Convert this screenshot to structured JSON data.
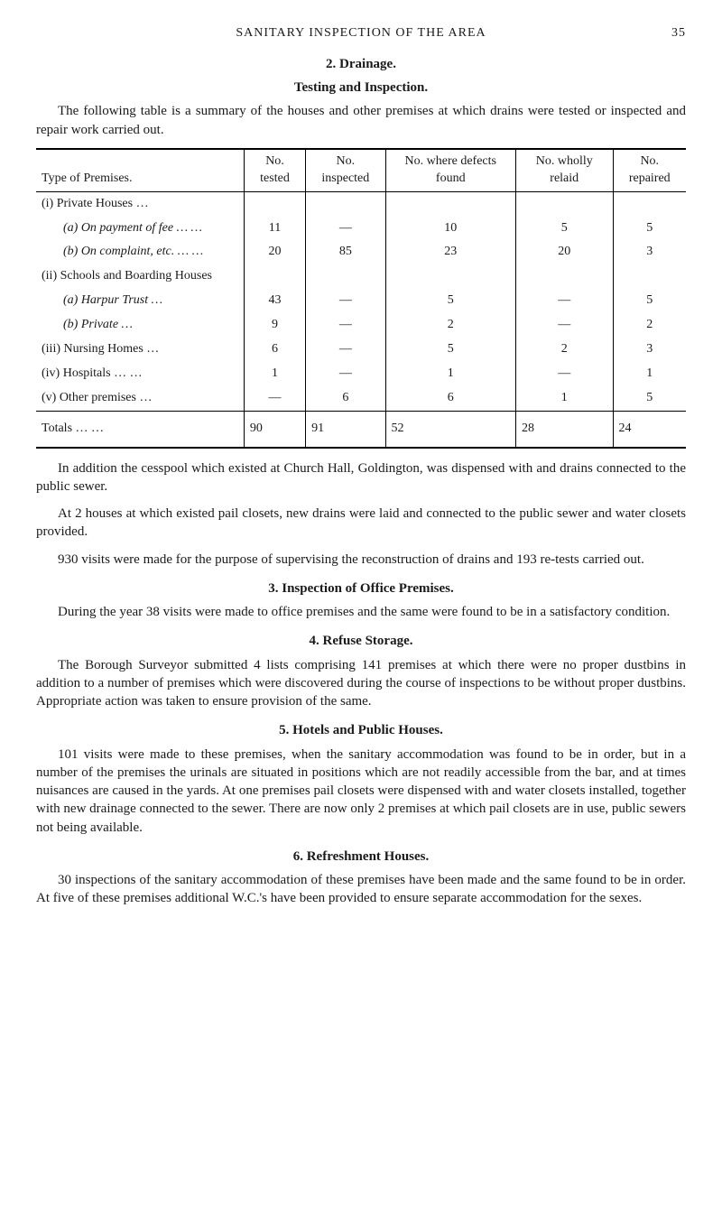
{
  "page": {
    "running_head": "SANITARY INSPECTION OF THE AREA",
    "number": "35"
  },
  "sec2": {
    "title_num": "2.  Drainage.",
    "subtitle": "Testing and Inspection.",
    "intro": "The following table is a summary of the houses and other premises at which drains were tested or inspected and repair work carried out."
  },
  "table": {
    "columns": [
      "Type of Premises.",
      "No. tested",
      "No. inspected",
      "No. where defects found",
      "No. wholly relaid",
      "No. repaired"
    ],
    "rows": [
      {
        "label": "(i) Private Houses  …",
        "vals": [
          "",
          "",
          "",
          "",
          ""
        ]
      },
      {
        "label": "(a) On payment of fee       …    …",
        "vals": [
          "11",
          "—",
          "10",
          "5",
          "5"
        ],
        "indent": true,
        "ital": true
      },
      {
        "label": "(b) On complaint, etc.     …    …",
        "vals": [
          "20",
          "85",
          "23",
          "20",
          "3"
        ],
        "indent": true,
        "ital": true
      },
      {
        "label": "(ii) Schools and Boarding Houses",
        "vals": [
          "",
          "",
          "",
          "",
          ""
        ]
      },
      {
        "label": "(a) Harpur Trust …",
        "vals": [
          "43",
          "—",
          "5",
          "—",
          "5"
        ],
        "indent": true,
        "ital": true
      },
      {
        "label": "(b) Private        …",
        "vals": [
          "9",
          "—",
          "2",
          "—",
          "2"
        ],
        "indent": true,
        "ital": true
      },
      {
        "label": "(iii) Nursing Homes …",
        "vals": [
          "6",
          "—",
          "5",
          "2",
          "3"
        ]
      },
      {
        "label": "(iv) Hospitals  …    …",
        "vals": [
          "1",
          "—",
          "1",
          "—",
          "1"
        ]
      },
      {
        "label": "(v) Other premises   …",
        "vals": [
          "—",
          "6",
          "6",
          "1",
          "5"
        ]
      }
    ],
    "totals": {
      "label": "Totals       …    …",
      "vals": [
        "90",
        "91",
        "52",
        "28",
        "24"
      ]
    }
  },
  "after_table": {
    "p1": "In addition the cesspool which existed at Church Hall, Goldington, was dispensed with and drains connected to the public sewer.",
    "p2": "At 2 houses at which existed pail closets, new drains were laid and connected to the public sewer and water closets provided.",
    "p3": "930 visits were made for the purpose of supervising the reconstruction of drains and 193 re-tests carried out."
  },
  "sec3": {
    "title": "3.  Inspection of Office Premises.",
    "body": "During the year 38 visits were made to office premises and the same were found to be in a satisfactory condition."
  },
  "sec4": {
    "title": "4.  Refuse Storage.",
    "body": "The Borough Surveyor submitted 4 lists comprising 141 premises at which there were no proper dustbins in addition to a number of premises which were discovered during the course of inspections to be without proper dustbins. Appropriate action was taken to ensure provision of the same."
  },
  "sec5": {
    "title": "5.  Hotels and Public Houses.",
    "body": "101 visits were made to these premises, when the sanitary accommodation was found to be in order, but in a number of the premises the urinals are situated in positions which are not readily accessible from the bar, and at times nuisances are caused in the yards. At one premises pail closets were dispensed with and water closets installed, together with new drainage connected to the sewer. There are now only 2 premises at which pail closets are in use, public sewers not being available."
  },
  "sec6": {
    "title": "6.  Refreshment Houses.",
    "body": "30 inspections of the sanitary accommodation of these premises have been made and the same found to be in order. At five of these premises additional W.C.'s have been provided to ensure separate accommodation for the sexes."
  }
}
